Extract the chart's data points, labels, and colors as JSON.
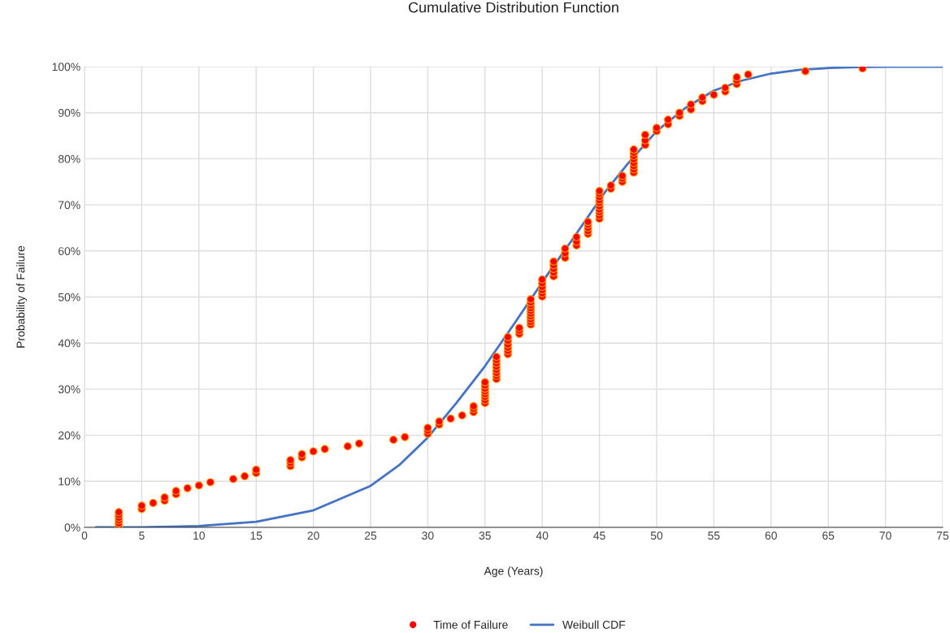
{
  "chart_data": {
    "type": "scatter",
    "title": "Cumulative Distribution Function",
    "xlabel": "Age (Years)",
    "ylabel": "Probability of Failure",
    "xlim": [
      0,
      75
    ],
    "xticks": [
      0,
      5,
      10,
      15,
      20,
      25,
      30,
      35,
      40,
      45,
      50,
      55,
      60,
      65,
      70,
      75
    ],
    "ylim": [
      0,
      100
    ],
    "yticks": [
      {
        "value": 0,
        "label": "0%"
      },
      {
        "value": 10,
        "label": "10%"
      },
      {
        "value": 20,
        "label": "20%"
      },
      {
        "value": 30,
        "label": "30%"
      },
      {
        "value": 40,
        "label": "40%"
      },
      {
        "value": 50,
        "label": "50%"
      },
      {
        "value": 60,
        "label": "60%"
      },
      {
        "value": 70,
        "label": "70%"
      },
      {
        "value": 80,
        "label": "80%"
      },
      {
        "value": 90,
        "label": "90%"
      },
      {
        "value": 100,
        "label": "100%"
      }
    ],
    "grid": true,
    "legend": "bottom",
    "series": [
      {
        "name": "Time of Failure",
        "marker": "circle",
        "color": "#ff0000",
        "x": [
          3,
          3,
          3,
          3,
          3,
          3,
          5,
          5,
          6,
          7,
          7,
          8,
          8,
          9,
          10,
          11,
          13,
          14,
          15,
          15,
          18,
          18,
          18,
          19,
          19,
          20,
          21,
          23,
          24,
          27,
          28,
          30,
          30,
          30,
          31,
          31,
          32,
          33,
          34,
          34,
          34,
          35,
          35,
          35,
          35,
          35,
          35,
          35,
          35,
          36,
          36,
          36,
          36,
          36,
          36,
          36,
          36,
          37,
          37,
          37,
          37,
          37,
          37,
          38,
          38,
          38,
          39,
          39,
          39,
          39,
          39,
          39,
          39,
          39,
          39,
          39,
          40,
          40,
          40,
          40,
          40,
          40,
          41,
          41,
          41,
          41,
          41,
          42,
          42,
          42,
          43,
          43,
          43,
          44,
          44,
          44,
          44,
          44,
          45,
          45,
          45,
          45,
          45,
          45,
          45,
          45,
          45,
          45,
          46,
          46,
          47,
          47,
          47,
          48,
          48,
          48,
          48,
          48,
          48,
          48,
          48,
          49,
          49,
          49,
          50,
          50,
          51,
          51,
          52,
          52,
          53,
          53,
          54,
          54,
          55,
          56,
          56,
          57,
          57,
          57,
          58,
          63,
          68
        ],
        "values": [
          0.3,
          0.9,
          1.5,
          2.1,
          2.7,
          3.3,
          4.0,
          4.7,
          5.3,
          5.8,
          6.5,
          7.2,
          7.9,
          8.5,
          9.1,
          9.8,
          10.5,
          11.1,
          11.8,
          12.5,
          13.3,
          14.0,
          14.6,
          15.2,
          15.9,
          16.5,
          17.0,
          17.6,
          18.2,
          19.0,
          19.6,
          20.3,
          21.0,
          21.6,
          22.3,
          23.0,
          23.6,
          24.3,
          25.0,
          25.7,
          26.3,
          27.0,
          27.6,
          28.3,
          28.9,
          29.5,
          30.1,
          30.8,
          31.5,
          32.2,
          32.9,
          33.5,
          34.2,
          34.9,
          35.6,
          36.3,
          37.0,
          37.6,
          38.3,
          39.0,
          39.7,
          40.5,
          41.3,
          42.0,
          42.7,
          43.3,
          44.0,
          44.6,
          45.2,
          45.8,
          46.4,
          47.0,
          47.6,
          48.2,
          48.8,
          49.5,
          50.1,
          50.8,
          51.5,
          52.2,
          53.0,
          53.8,
          54.5,
          55.3,
          56.1,
          56.9,
          57.7,
          58.5,
          59.5,
          60.5,
          61.2,
          62.0,
          63.0,
          63.7,
          64.3,
          65.0,
          65.7,
          66.3,
          67.0,
          67.7,
          68.4,
          69.0,
          69.7,
          70.4,
          71.0,
          71.7,
          72.4,
          73.0,
          73.5,
          74.2,
          75.0,
          75.7,
          76.3,
          77.0,
          77.7,
          78.4,
          79.1,
          79.9,
          80.6,
          81.3,
          82.0,
          83.0,
          84.0,
          85.2,
          86.0,
          86.7,
          87.5,
          88.5,
          89.3,
          90.0,
          90.7,
          91.8,
          92.5,
          93.3,
          93.9,
          94.6,
          95.4,
          96.2,
          97.0,
          97.7,
          98.3,
          99.0,
          99.6
        ]
      },
      {
        "name": "Weibull CDF",
        "type": "line",
        "marker": "none",
        "color": "#4472c4",
        "x": [
          1,
          5,
          10,
          15,
          20,
          25,
          27.5,
          30,
          32.5,
          35,
          37.5,
          40.5,
          42.5,
          45.5,
          47.5,
          50,
          52.5,
          55,
          57.5,
          60,
          62.5,
          65,
          67.5,
          70,
          75
        ],
        "values": [
          0,
          0,
          0.3,
          1.2,
          3.7,
          9,
          13.5,
          19.5,
          27,
          35,
          44,
          55,
          62,
          72.8,
          79,
          86,
          91,
          94.8,
          97,
          98.5,
          99.3,
          99.7,
          99.9,
          100,
          100
        ]
      }
    ]
  }
}
